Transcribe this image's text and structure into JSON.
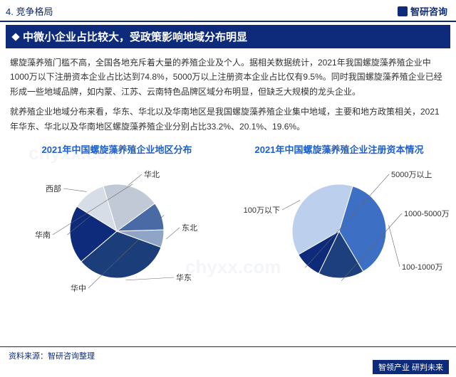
{
  "header": {
    "section": "4. 竞争格局",
    "brand": "智研咨询"
  },
  "headline": "中微小企业占比较大，受政策影响地域分布明显",
  "paragraphs": [
    "螺旋藻养殖门槛不高，全国各地充斥着大量的养殖企业及个人。据相关数据统计，2021年我国螺旋藻养殖企业中1000万以下注册资本企业占比达到74.8%，5000万以上注册资本企业占比仅有9.5%。同时我国螺旋藻养殖企业已经形成一些地域品牌，如内蒙、江苏、云南特色品牌区域分布明显，但缺乏大规模的龙头企业。",
    "就养殖企业地域分布来看，华东、华北以及华南地区是我国螺旋藻养殖企业集中地域，主要和地方政策相关，2021年华东、华北以及华南地区螺旋藻养殖企业分别占比33.2%、20.1%、19.6%。"
  ],
  "chart_left": {
    "title": "2021年中国螺旋藻养殖企业地区分布",
    "type": "pie",
    "slices": [
      {
        "label": "华东",
        "value": 33.2,
        "color": "#1b3d79"
      },
      {
        "label": "华北",
        "value": 20.1,
        "color": "#0d2b7a"
      },
      {
        "label": "西部",
        "value": 11.5,
        "color": "#d7dde6"
      },
      {
        "label": "华南",
        "value": 19.6,
        "color": "#c1c9d6"
      },
      {
        "label": "华中",
        "value": 9.6,
        "color": "#4a6aa5"
      },
      {
        "label": "东北",
        "value": 6.0,
        "color": "#8fa4c6"
      }
    ],
    "label_fontsize": 11,
    "background_color": "#ffffff"
  },
  "chart_right": {
    "title": "2021年中国螺旋藻养殖企业注册资本情况",
    "type": "pie",
    "slices": [
      {
        "label": "100万以下",
        "value": 38.0,
        "color": "#bcd0ee"
      },
      {
        "label": "100-1000万",
        "value": 36.8,
        "color": "#3d6fc5"
      },
      {
        "label": "1000-5000万",
        "value": 15.7,
        "color": "#1e3f7d"
      },
      {
        "label": "5000万以上",
        "value": 9.5,
        "color": "#0d2b7a"
      }
    ],
    "label_fontsize": 11,
    "background_color": "#ffffff"
  },
  "source": "资料来源：智研咨询整理",
  "footer": "智领产业 研判未来",
  "watermark": "chyxx.com"
}
